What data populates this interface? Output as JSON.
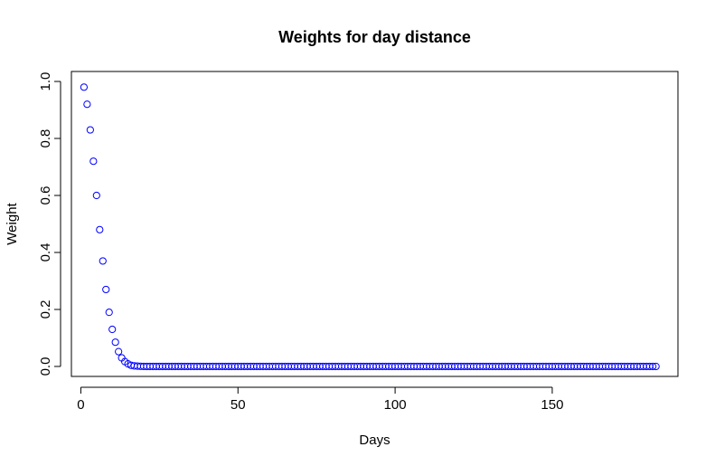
{
  "chart_data": {
    "type": "scatter",
    "title": "Weights for day distance",
    "xlabel": "Days",
    "ylabel": "Weight",
    "xlim": [
      -3,
      190
    ],
    "ylim": [
      -0.035,
      1.035
    ],
    "xticks": [
      0,
      50,
      100,
      150
    ],
    "xtick_labels": [
      "0",
      "50",
      "100",
      "150"
    ],
    "yticks": [
      0,
      0.2,
      0.4,
      0.6,
      0.8,
      1.0
    ],
    "ytick_labels": [
      "0.0",
      "0.2",
      "0.4",
      "0.6",
      "0.8",
      "1.0"
    ],
    "grid": false,
    "legend": "none",
    "marker": "open-circle",
    "point_color": "#0000ff",
    "series": [
      {
        "x_start": 1,
        "x_end": 183,
        "x_step": 1,
        "values": [
          0.98,
          0.92,
          0.83,
          0.72,
          0.6,
          0.48,
          0.37,
          0.27,
          0.19,
          0.13,
          0.085,
          0.052,
          0.03,
          0.017,
          0.009,
          0.004,
          0.002,
          0.001,
          0.0005,
          0.0002
        ],
        "remaining_value": 0
      }
    ]
  }
}
